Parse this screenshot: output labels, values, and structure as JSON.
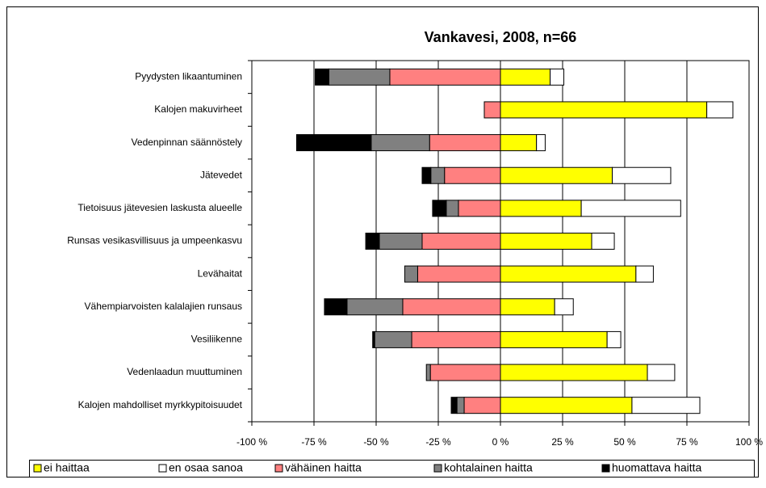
{
  "chart_data": {
    "type": "diverging_bar",
    "title": "Vankavesi, 2008, n=66",
    "categories": [
      "Pyydysten likaantuminen",
      "Kalojen makuvirheet",
      "Vedenpinnan säännöstely",
      "Jätevedet",
      "Tietoisuus jätevesien laskusta alueelle",
      "Runsas vesikasvillisuus ja umpeenkasvu",
      "Levähaitat",
      "Vähempiarvoisten kalalajien runsaus",
      "Vesiliikenne",
      "Vedenlaadun muuttuminen",
      "Kalojen mahdolliset myrkkypitoisuudet"
    ],
    "series": [
      {
        "name": "ei haittaa",
        "color": "#ffff00",
        "values": [
          20,
          83,
          14.5,
          45,
          32.5,
          36.7,
          54.5,
          21.8,
          42.9,
          59.1,
          52.9
        ]
      },
      {
        "name": "en osaa sanoa",
        "color": "#ffffff",
        "values": [
          5.5,
          10.5,
          3.5,
          23.5,
          40,
          9.1,
          7,
          7.5,
          5.5,
          11,
          27.3
        ]
      },
      {
        "name": "vähäinen haitta",
        "color": "#ff8080",
        "values": [
          -44.5,
          -6.5,
          -28.5,
          -22.5,
          -16.9,
          -31.5,
          -33.3,
          -39.3,
          -35.7,
          -28.2,
          -14.6
        ]
      },
      {
        "name": "kohtalainen haitta",
        "color": "#808080",
        "values": [
          -24.5,
          0,
          -23.5,
          -5.5,
          -4.9,
          -17.2,
          -5.2,
          -22.4,
          -14.9,
          -1.6,
          -2.9
        ]
      },
      {
        "name": "huomattava haitta",
        "color": "#000000",
        "values": [
          -5.5,
          0,
          -30,
          -3.5,
          -5.5,
          -5.5,
          0,
          -9.1,
          -0.8,
          0,
          -2.3
        ]
      }
    ],
    "xlim": [
      -100,
      100
    ],
    "xticks": [
      {
        "value": -100,
        "label": "-100 %"
      },
      {
        "value": -75,
        "label": "-75 %"
      },
      {
        "value": -50,
        "label": "-50 %"
      },
      {
        "value": -25,
        "label": "-25 %"
      },
      {
        "value": 0,
        "label": "0 %"
      },
      {
        "value": 25,
        "label": "25 %"
      },
      {
        "value": 50,
        "label": "50 %"
      },
      {
        "value": 75,
        "label": "75 %"
      },
      {
        "value": 100,
        "label": "100 %"
      }
    ],
    "grid": true,
    "legend": "bottom"
  }
}
